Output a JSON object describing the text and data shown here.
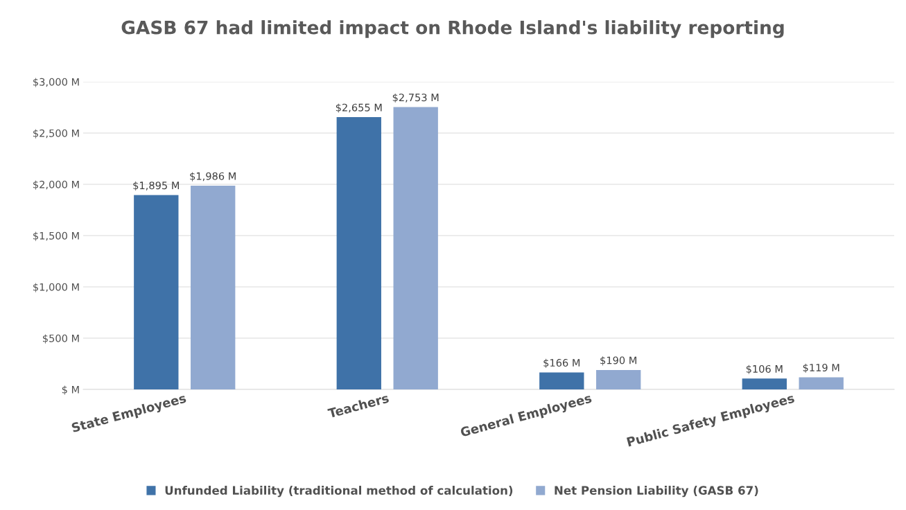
{
  "chart_data": {
    "type": "bar",
    "title": "GASB 67 had limited impact on Rhode Island's liability reporting",
    "categories": [
      "State Employees",
      "Teachers",
      "General Employees",
      "Public Safety Employees"
    ],
    "series": [
      {
        "name": "Unfunded Liability (traditional method of calculation)",
        "color": "#3f72a8",
        "values": [
          1895,
          2655,
          166,
          106
        ],
        "value_labels": [
          "$1,895 M",
          "$2,655 M",
          "$166 M",
          "$106 M"
        ]
      },
      {
        "name": "Net Pension Liability (GASB 67)",
        "color": "#91a9d0",
        "values": [
          1986,
          2753,
          190,
          119
        ],
        "value_labels": [
          "$1,986 M",
          "$2,753 M",
          "$190 M",
          "$119 M"
        ]
      }
    ],
    "ylim": [
      0,
      3000
    ],
    "yticks": [
      {
        "value": 0,
        "label": "$ M"
      },
      {
        "value": 500,
        "label": "$500 M"
      },
      {
        "value": 1000,
        "label": "$1,000 M"
      },
      {
        "value": 1500,
        "label": "$1,500 M"
      },
      {
        "value": 2000,
        "label": "$2,000 M"
      },
      {
        "value": 2500,
        "label": "$2,500 M"
      },
      {
        "value": 3000,
        "label": "$3,000 M"
      }
    ],
    "grid": "y",
    "legend": "bottom"
  }
}
